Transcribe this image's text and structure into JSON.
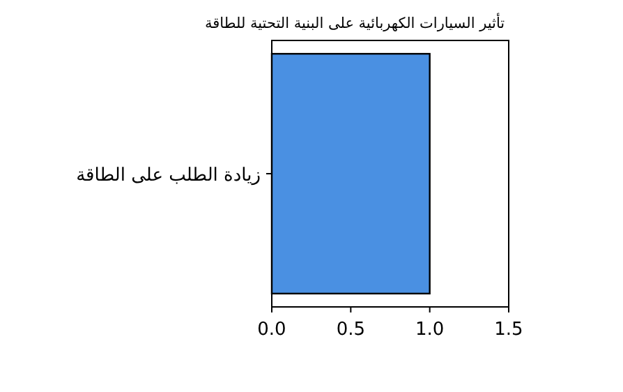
{
  "chart_data": {
    "type": "bar",
    "orientation": "horizontal",
    "title": "تأثير السيارات الكهربائية على البنية التحتية للطاقة",
    "categories": [
      "زيادة الطلب على الطاقة"
    ],
    "values": [
      1.0
    ],
    "color": "#4a90e2",
    "xlim": [
      0,
      1.5
    ],
    "xticks": [
      {
        "value": 0,
        "label": "0.0"
      },
      0.5,
      {
        "value": 1,
        "label": "1.0"
      },
      1.5
    ],
    "grid": false
  }
}
